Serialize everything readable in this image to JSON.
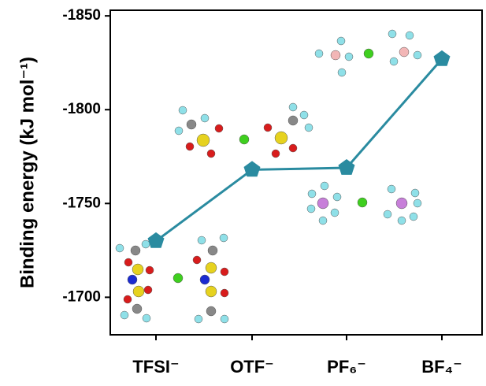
{
  "chart_data": {
    "type": "line",
    "y_label": "Binding energy (kJ mol⁻¹)",
    "categories": [
      "TFSI⁻",
      "OTF⁻",
      "PF₆⁻",
      "BF₄⁻"
    ],
    "values": [
      -1730,
      -1768,
      -1769,
      -1827
    ],
    "color": "#2a8ba0",
    "marker": "pentagon",
    "ylim": [
      -1680,
      -1853
    ],
    "yticks": [
      -1700,
      -1750,
      -1800,
      -1850
    ],
    "grid": false
  }
}
